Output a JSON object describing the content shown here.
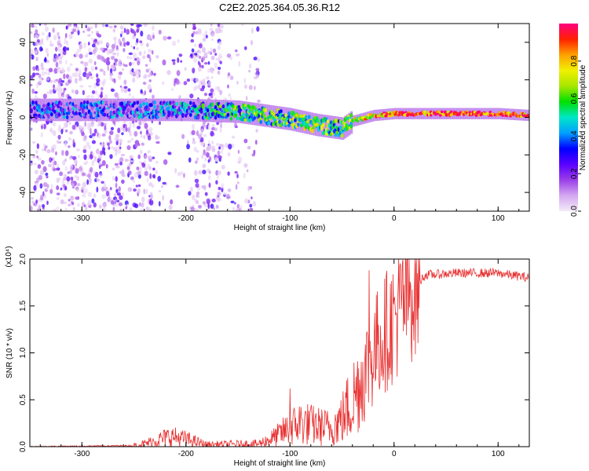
{
  "title": "C2E2.2025.364.05.36.R12",
  "chart_data": [
    {
      "type": "heatmap",
      "xlabel": "Height of straight line (km)",
      "ylabel": "Frequency (Hz)",
      "xlim": [
        -350,
        130
      ],
      "ylim": [
        -50,
        50
      ],
      "x_ticks": [
        -300,
        -200,
        -100,
        0,
        100
      ],
      "y_ticks": [
        -40,
        -20,
        0,
        20,
        40
      ],
      "colorbar": {
        "label": "Normalized spectral amplitude",
        "range": [
          0,
          1
        ],
        "ticks": [
          0.0,
          0.2,
          0.4,
          0.6,
          0.8
        ],
        "colormap": [
          "#f4eaf8",
          "#d4a8f0",
          "#9a3ee8",
          "#5a00ff",
          "#0000ff",
          "#00a0ff",
          "#00e6c8",
          "#00e000",
          "#a8e600",
          "#f0f000",
          "#ffa000",
          "#ff2000",
          "#ff0080"
        ]
      },
      "ridge": {
        "x": [
          -350,
          -300,
          -250,
          -200,
          -150,
          -100,
          -75,
          -50,
          -40,
          -20,
          0,
          50,
          100,
          130
        ],
        "freq": [
          4,
          4,
          4,
          4,
          3,
          -1,
          -4,
          -6,
          -2,
          1,
          2,
          2,
          2,
          1
        ],
        "amplitude": [
          0.25,
          0.25,
          0.3,
          0.35,
          0.5,
          0.55,
          0.6,
          0.5,
          0.65,
          0.8,
          0.85,
          0.9,
          0.9,
          0.85
        ]
      }
    },
    {
      "type": "line",
      "xlabel": "Height of straight line (km)",
      "ylabel": "SNR (10 * v/v)",
      "y_multiplier": "(x10⁴)",
      "xlim": [
        -350,
        130
      ],
      "ylim": [
        0,
        2.0
      ],
      "x_ticks": [
        -300,
        -200,
        -100,
        0,
        100
      ],
      "y_ticks": [
        0.0,
        0.5,
        1.0,
        1.5,
        2.0
      ],
      "y_tick_labels": [
        "0.0",
        "0.5",
        "1.0",
        "1.5",
        "2.0"
      ],
      "color": "#e83030",
      "envelope": {
        "x": [
          -350,
          -250,
          -240,
          -215,
          -200,
          -180,
          -130,
          -115,
          -100,
          -90,
          -75,
          -60,
          -50,
          -40,
          -30,
          -20,
          -10,
          0,
          10,
          20,
          30,
          60,
          100,
          130
        ],
        "y": [
          0.0,
          0.01,
          0.03,
          0.11,
          0.08,
          0.02,
          0.03,
          0.1,
          0.2,
          0.26,
          0.22,
          0.2,
          0.3,
          0.5,
          0.75,
          1.0,
          1.2,
          1.35,
          1.55,
          1.7,
          1.83,
          1.85,
          1.85,
          1.8
        ]
      },
      "spikes": [
        {
          "x": -100,
          "y": 0.62
        },
        {
          "x": -24,
          "y": 1.88
        },
        {
          "x": -15,
          "y": 1.3
        },
        {
          "x": 4,
          "y": 1.75
        }
      ]
    }
  ]
}
